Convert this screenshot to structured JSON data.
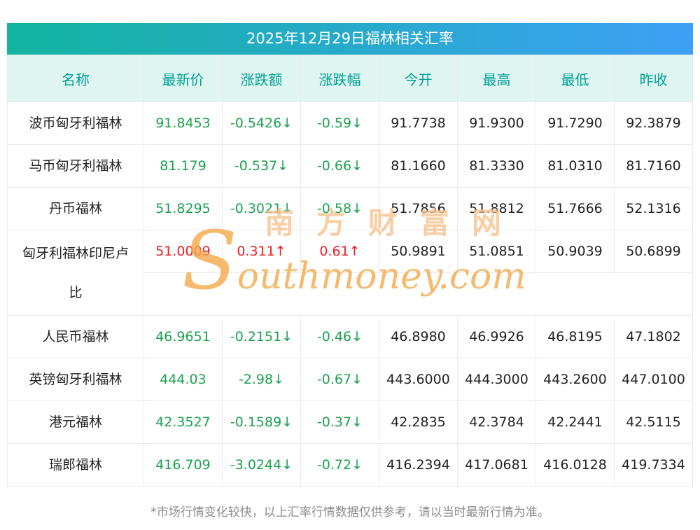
{
  "chart_data": {
    "type": "table",
    "title": "2025年12月29日福林相关汇率",
    "columns": [
      "名称",
      "最新价",
      "涨跌额",
      "涨跌幅",
      "今开",
      "最高",
      "最低",
      "昨收"
    ],
    "rows": [
      {
        "name": "波币匈牙利福林",
        "values": [
          "91.8453",
          "-0.5426↓",
          "-0.59↓",
          "91.7738",
          "91.9300",
          "91.7290",
          "92.3879"
        ],
        "trend": "down",
        "tall": false
      },
      {
        "name": "马币匈牙利福林",
        "values": [
          "81.179",
          "-0.537↓",
          "-0.66↓",
          "81.1660",
          "81.3330",
          "81.0310",
          "81.7160"
        ],
        "trend": "down",
        "tall": false
      },
      {
        "name": "丹币福林",
        "values": [
          "51.8295",
          "-0.3021↓",
          "-0.58↓",
          "51.7856",
          "51.8812",
          "51.7666",
          "52.1316"
        ],
        "trend": "down",
        "tall": false
      },
      {
        "name": "匈牙利福林印尼卢比",
        "values": [
          "51.0009",
          "0.311↑",
          "0.61↑",
          "50.9891",
          "51.0851",
          "50.9039",
          "50.6899"
        ],
        "trend": "up",
        "tall": true
      },
      {
        "name": "人民币福林",
        "values": [
          "46.9651",
          "-0.2151↓",
          "-0.46↓",
          "46.8980",
          "46.9926",
          "46.8195",
          "47.1802"
        ],
        "trend": "down",
        "tall": false
      },
      {
        "name": "英镑匈牙利福林",
        "values": [
          "444.03",
          "-2.98↓",
          "-0.67↓",
          "443.6000",
          "444.3000",
          "443.2600",
          "447.0100"
        ],
        "trend": "down",
        "tall": false
      },
      {
        "name": "港元福林",
        "values": [
          "42.3527",
          "-0.1589↓",
          "-0.37↓",
          "42.2835",
          "42.3784",
          "42.2441",
          "42.5115"
        ],
        "trend": "down",
        "tall": false
      },
      {
        "name": "瑞郎福林",
        "values": [
          "416.709",
          "-3.0244↓",
          "-0.72↓",
          "416.2394",
          "417.0681",
          "416.0128",
          "419.7334"
        ],
        "trend": "down",
        "tall": false
      }
    ]
  },
  "watermark": {
    "cn": "南方财富网",
    "en_initial": "S",
    "en_rest": "outhmoney.com"
  },
  "footer_note": "*市场行情变化较快，以上汇率行情数据仅供参考，请以当时最新行情为准。",
  "colors": {
    "up_red": "#ee1c25",
    "down_green": "#1ba24f",
    "title_gradient_start": "#12b4a0",
    "title_gradient_end": "#3da0f6",
    "header_bg": "#def5f1",
    "header_text": "#00a093",
    "watermark_orange": "#f5a849"
  }
}
